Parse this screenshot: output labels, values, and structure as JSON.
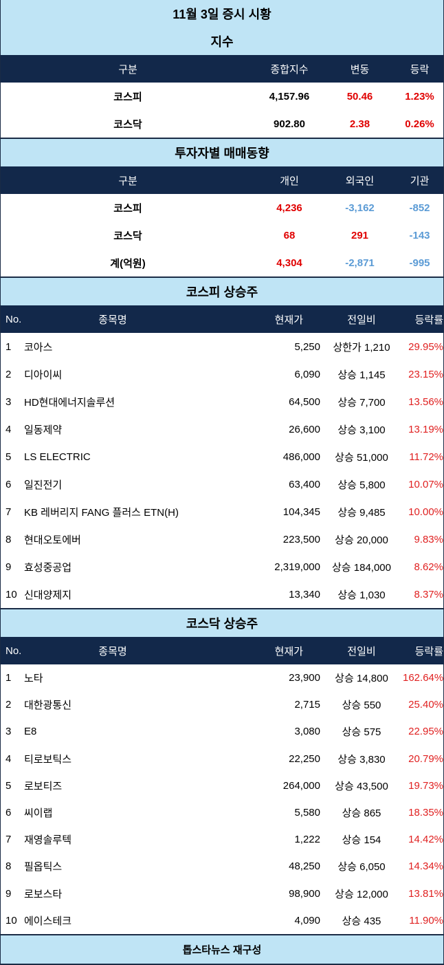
{
  "title": "11월 3일 증시 시황",
  "index": {
    "title": "지수",
    "headers": [
      "구분",
      "종합지수",
      "변동",
      "등락"
    ],
    "rows": [
      [
        "코스피",
        "4,157.96",
        "50.46",
        "1.23%"
      ],
      [
        "코스닥",
        "902.80",
        "2.38",
        "0.26%"
      ]
    ]
  },
  "investors": {
    "title": "투자자별 매매동향",
    "headers": [
      "구분",
      "개인",
      "외국인",
      "기관"
    ],
    "rows": [
      [
        "코스피",
        "4,236",
        "-3,162",
        "-852"
      ],
      [
        "코스닥",
        "68",
        "291",
        "-143"
      ],
      [
        "계(억원)",
        "4,304",
        "-2,871",
        "-995"
      ]
    ]
  },
  "kospi": {
    "title": "코스피 상승주",
    "headers": [
      "No.",
      "종목명",
      "현재가",
      "전일비",
      "등락률"
    ],
    "rows": [
      [
        "1",
        "코아스",
        "5,250",
        "상한가 1,210",
        "29.95%"
      ],
      [
        "2",
        "디아이씨",
        "6,090",
        "상승 1,145",
        "23.15%"
      ],
      [
        "3",
        "HD현대에너지솔루션",
        "64,500",
        "상승 7,700",
        "13.56%"
      ],
      [
        "4",
        "일동제약",
        "26,600",
        "상승 3,100",
        "13.19%"
      ],
      [
        "5",
        "LS ELECTRIC",
        "486,000",
        "상승 51,000",
        "11.72%"
      ],
      [
        "6",
        "일진전기",
        "63,400",
        "상승 5,800",
        "10.07%"
      ],
      [
        "7",
        "KB 레버리지 FANG 플러스 ETN(H)",
        "104,345",
        "상승 9,485",
        "10.00%"
      ],
      [
        "8",
        "현대오토에버",
        "223,500",
        "상승 20,000",
        "9.83%"
      ],
      [
        "9",
        "효성중공업",
        "2,319,000",
        "상승 184,000",
        "8.62%"
      ],
      [
        "10",
        "신대양제지",
        "13,340",
        "상승 1,030",
        "8.37%"
      ]
    ]
  },
  "kosdaq": {
    "title": "코스닥 상승주",
    "headers": [
      "No.",
      "종목명",
      "현재가",
      "전일비",
      "등락률"
    ],
    "rows": [
      [
        "1",
        "노타",
        "23,900",
        "상승 14,800",
        "162.64%"
      ],
      [
        "2",
        "대한광통신",
        "2,715",
        "상승 550",
        "25.40%"
      ],
      [
        "3",
        "E8",
        "3,080",
        "상승 575",
        "22.95%"
      ],
      [
        "4",
        "티로보틱스",
        "22,250",
        "상승 3,830",
        "20.79%"
      ],
      [
        "5",
        "로보티즈",
        "264,000",
        "상승 43,500",
        "19.73%"
      ],
      [
        "6",
        "씨이랩",
        "5,580",
        "상승 865",
        "18.35%"
      ],
      [
        "7",
        "재영솔루텍",
        "1,222",
        "상승 154",
        "14.42%"
      ],
      [
        "8",
        "필옵틱스",
        "48,250",
        "상승 6,050",
        "14.34%"
      ],
      [
        "9",
        "로보스타",
        "98,900",
        "상승 12,000",
        "13.81%"
      ],
      [
        "10",
        "에이스테크",
        "4,090",
        "상승 435",
        "11.90%"
      ]
    ]
  },
  "footer": "톱스타뉴스 재구성",
  "colors": {
    "header_bg": "#12284a",
    "band_bg": "#bfe4f5",
    "up": "#e00000",
    "down": "#5b9bd5"
  }
}
